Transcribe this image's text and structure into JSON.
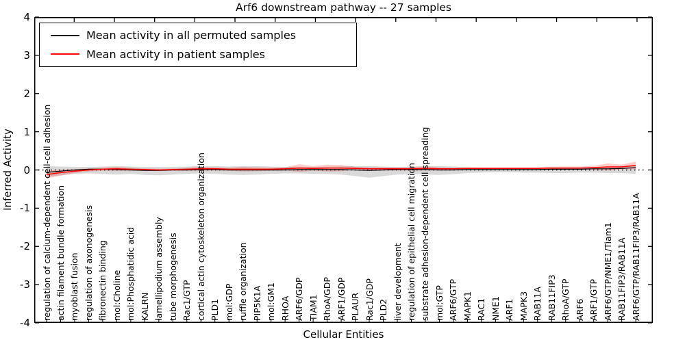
{
  "chart_data": {
    "type": "line",
    "title": "Arf6 downstream pathway -- 27 samples",
    "xlabel": "Cellular Entities",
    "ylabel": "Inferred Activity",
    "ylim": [
      -4,
      4
    ],
    "grid": false,
    "legend_position": "upper-left",
    "y_ticks": [
      "4",
      "3",
      "2",
      "1",
      "0",
      "-1",
      "-2",
      "-3",
      "-4"
    ],
    "categories": [
      "regulation of calcium-dependent cell-cell adhesion",
      "actin filament bundle formation",
      "myoblast fusion",
      "regulation of axonogenesis",
      "fibronectin binding",
      "mol:Choline",
      "mol:Phosphatidic acid",
      "KALRN",
      "lamellipodium assembly",
      "tube morphogenesis",
      "Rac1/GTP",
      "cortical actin cytoskeleton organization",
      "PLD1",
      "mol:GDP",
      "ruffle organization",
      "PIP5K1A",
      "mol:GM1",
      "RHOA",
      "ARF6/GDP",
      "TIAM1",
      "RhoA/GDP",
      "ARF1/GDP",
      "PLAUR",
      "Rac1/GDP",
      "PLD2",
      "liver development",
      "regulation of epithelial cell migration",
      "substrate adhesion-dependent cell spreading",
      "mol:GTP",
      "ARF6/GTP",
      "MAPK1",
      "RAC1",
      "NME1",
      "ARF1",
      "MAPK3",
      "RAB11A",
      "RAB11FIP3",
      "RhoA/GTP",
      "ARF6",
      "ARF1/GTP",
      "ARF6/GTP/NME1/Tiam1",
      "RAB11FIP3/RAB11A",
      "ARF6/GTP/RAB11FIP3/RAB11A"
    ],
    "series": [
      {
        "name": "Mean activity in all permuted samples",
        "color": "#000000",
        "values": [
          -0.06,
          -0.03,
          0.0,
          0.02,
          0.02,
          0.01,
          0.0,
          -0.01,
          -0.01,
          0.0,
          0.0,
          0.01,
          0.01,
          0.0,
          0.0,
          0.0,
          0.0,
          0.0,
          0.01,
          0.01,
          0.01,
          0.01,
          0.0,
          -0.01,
          0.0,
          0.01,
          0.01,
          0.01,
          0.0,
          0.0,
          0.01,
          0.01,
          0.01,
          0.01,
          0.01,
          0.01,
          0.02,
          0.02,
          0.02,
          0.03,
          0.03,
          0.04,
          0.06
        ]
      },
      {
        "name": "Mean activity in patient samples",
        "color": "#ff0000",
        "values": [
          -0.12,
          -0.07,
          -0.03,
          0.0,
          0.02,
          0.03,
          0.02,
          0.01,
          0.0,
          0.01,
          0.02,
          0.03,
          0.03,
          0.02,
          0.02,
          0.02,
          0.02,
          0.03,
          0.05,
          0.04,
          0.05,
          0.05,
          0.04,
          0.03,
          0.03,
          0.03,
          0.03,
          0.04,
          0.03,
          0.03,
          0.04,
          0.04,
          0.04,
          0.04,
          0.04,
          0.04,
          0.05,
          0.05,
          0.05,
          0.06,
          0.08,
          0.08,
          0.12
        ]
      }
    ],
    "bands": [
      {
        "name": "permuted-samples-range",
        "color": "rgba(120,120,120,0.28)",
        "upper": [
          0.1,
          0.09,
          0.08,
          0.08,
          0.09,
          0.1,
          0.09,
          0.08,
          0.08,
          0.08,
          0.09,
          0.1,
          0.1,
          0.09,
          0.1,
          0.1,
          0.09,
          0.08,
          0.08,
          0.08,
          0.08,
          0.09,
          0.1,
          0.1,
          0.09,
          0.08,
          0.09,
          0.1,
          0.1,
          0.09,
          0.07,
          0.06,
          0.06,
          0.06,
          0.06,
          0.06,
          0.07,
          0.07,
          0.07,
          0.08,
          0.08,
          0.08,
          0.1
        ],
        "lower": [
          -0.18,
          -0.14,
          -0.1,
          -0.09,
          -0.1,
          -0.12,
          -0.1,
          -0.13,
          -0.14,
          -0.12,
          -0.1,
          -0.09,
          -0.1,
          -0.12,
          -0.13,
          -0.12,
          -0.1,
          -0.09,
          -0.09,
          -0.1,
          -0.1,
          -0.12,
          -0.16,
          -0.2,
          -0.16,
          -0.12,
          -0.1,
          -0.12,
          -0.13,
          -0.11,
          -0.08,
          -0.07,
          -0.06,
          -0.06,
          -0.07,
          -0.07,
          -0.08,
          -0.08,
          -0.07,
          -0.07,
          -0.08,
          -0.08,
          -0.1
        ]
      },
      {
        "name": "patient-samples-range",
        "color": "rgba(255,0,0,0.20)",
        "upper": [
          -0.02,
          0.01,
          0.02,
          0.04,
          0.06,
          0.08,
          0.06,
          0.04,
          0.03,
          0.04,
          0.06,
          0.08,
          0.07,
          0.06,
          0.08,
          0.07,
          0.06,
          0.07,
          0.15,
          0.1,
          0.14,
          0.13,
          0.08,
          0.07,
          0.07,
          0.07,
          0.07,
          0.09,
          0.07,
          0.06,
          0.07,
          0.07,
          0.07,
          0.07,
          0.07,
          0.07,
          0.09,
          0.09,
          0.09,
          0.11,
          0.17,
          0.14,
          0.22
        ],
        "lower": [
          -0.22,
          -0.15,
          -0.08,
          -0.04,
          -0.02,
          -0.02,
          -0.02,
          -0.02,
          -0.03,
          -0.02,
          -0.02,
          -0.02,
          -0.01,
          -0.02,
          -0.04,
          -0.03,
          -0.02,
          -0.01,
          -0.05,
          -0.02,
          -0.04,
          -0.03,
          0.0,
          -0.01,
          -0.01,
          -0.01,
          -0.01,
          -0.01,
          -0.01,
          0.0,
          0.01,
          0.01,
          0.01,
          0.01,
          0.01,
          0.01,
          0.01,
          0.01,
          0.01,
          0.01,
          -0.01,
          0.02,
          0.02
        ]
      }
    ],
    "zero_line": {
      "y": 0,
      "style": "dotted",
      "color": "#000000"
    }
  }
}
